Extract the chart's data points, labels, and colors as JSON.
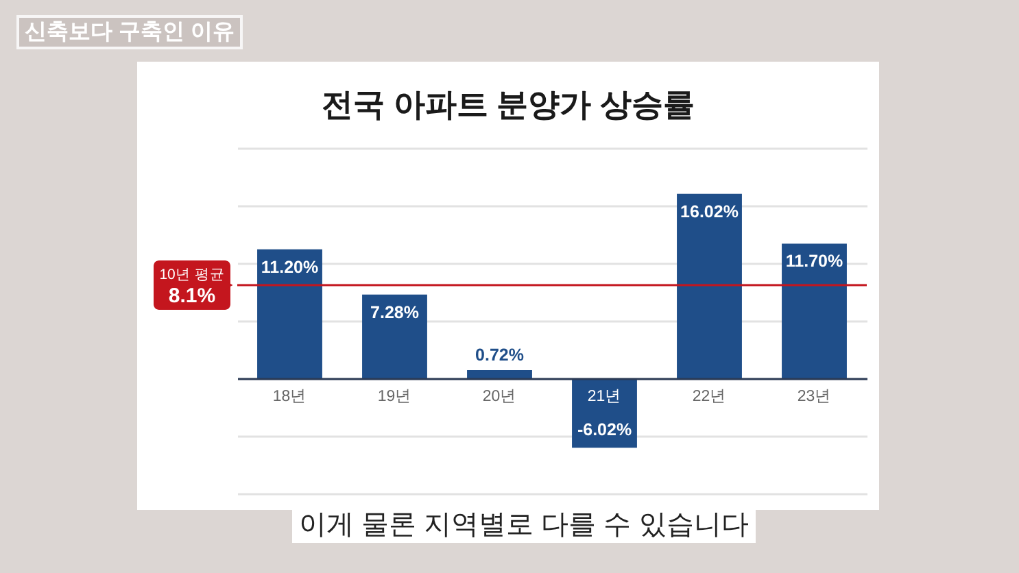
{
  "chart_data": {
    "type": "bar",
    "title": "전국 아파트 분양가 상승률",
    "categories": [
      "18년",
      "19년",
      "20년",
      "21년",
      "22년",
      "23년"
    ],
    "values": [
      11.2,
      7.28,
      0.72,
      -6.02,
      16.02,
      11.7
    ],
    "value_labels": [
      "11.20%",
      "7.28%",
      "0.72%",
      "-6.02%",
      "16.02%",
      "11.70%"
    ],
    "color": "#1f4e89",
    "ylim": [
      -10,
      20
    ],
    "yticks": [
      {
        "value": -10,
        "label": null
      },
      {
        "value": -5,
        "label": null
      },
      {
        "value": 0,
        "label": null
      },
      {
        "value": 5,
        "label": null
      },
      {
        "value": 10,
        "label": null
      },
      {
        "value": 15,
        "label": null
      },
      {
        "value": 20,
        "label": null
      }
    ],
    "grid": "y",
    "tick_labels": "x",
    "ref_lines": [
      {
        "axis": "y",
        "value": 8.1,
        "label": "10년 평균\n8.1%",
        "color": "#c4161e"
      }
    ],
    "annotations": [
      "신축보다 구축인 이유",
      "이게 물론 지역별로 다를 수 있습니다"
    ]
  }
}
